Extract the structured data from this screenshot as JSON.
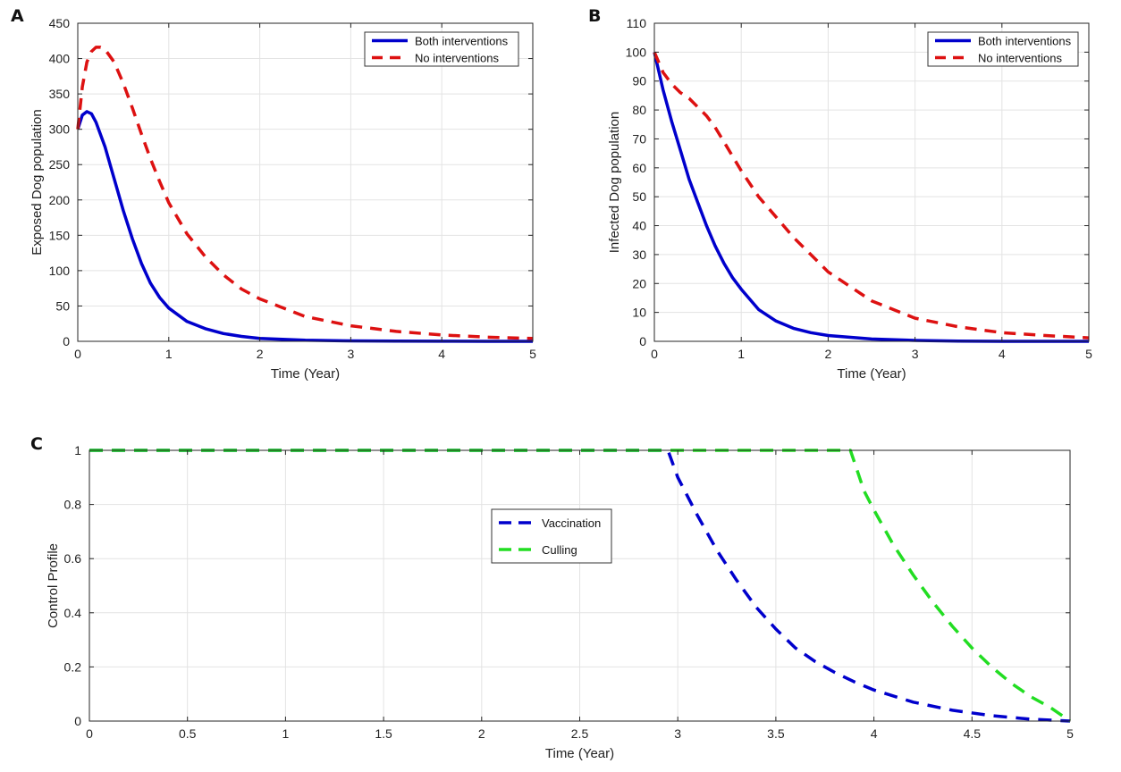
{
  "chart_data": [
    {
      "id": "A",
      "type": "line",
      "panel_label": "A",
      "xlabel": "Time (Year)",
      "ylabel": "Exposed Dog population",
      "xlim": [
        0,
        5
      ],
      "ylim": [
        0,
        450
      ],
      "xticks": [
        0,
        1,
        2,
        3,
        4,
        5
      ],
      "yticks": [
        0,
        50,
        100,
        150,
        200,
        250,
        300,
        350,
        400,
        450
      ],
      "grid": true,
      "legend_position": "top-right",
      "series": [
        {
          "name": "Both interventions",
          "color": "#0000CC",
          "style": "solid",
          "x": [
            0,
            0.05,
            0.1,
            0.15,
            0.2,
            0.3,
            0.4,
            0.5,
            0.6,
            0.7,
            0.8,
            0.9,
            1.0,
            1.2,
            1.4,
            1.6,
            1.8,
            2.0,
            2.5,
            3.0,
            3.5,
            4.0,
            4.5,
            5.0
          ],
          "y": [
            300,
            320,
            325,
            322,
            310,
            275,
            230,
            185,
            145,
            110,
            82,
            62,
            47,
            28,
            18,
            11,
            7,
            4,
            1.5,
            0.6,
            0.2,
            0.1,
            0,
            0
          ]
        },
        {
          "name": "No interventions",
          "color": "#DD1111",
          "style": "dashed",
          "x": [
            0,
            0.05,
            0.1,
            0.15,
            0.2,
            0.25,
            0.3,
            0.4,
            0.5,
            0.6,
            0.7,
            0.8,
            0.9,
            1.0,
            1.2,
            1.4,
            1.6,
            1.8,
            2.0,
            2.5,
            3.0,
            3.5,
            4.0,
            4.5,
            5.0
          ],
          "y": [
            300,
            360,
            395,
            410,
            416,
            416,
            413,
            395,
            365,
            330,
            293,
            258,
            226,
            196,
            152,
            120,
            94,
            74,
            60,
            35,
            22,
            14,
            9,
            6,
            4
          ]
        }
      ]
    },
    {
      "id": "B",
      "type": "line",
      "panel_label": "B",
      "xlabel": "Time (Year)",
      "ylabel": "Infected Dog population",
      "xlim": [
        0,
        5
      ],
      "ylim": [
        0,
        110
      ],
      "xticks": [
        0,
        1,
        2,
        3,
        4,
        5
      ],
      "yticks": [
        0,
        10,
        20,
        30,
        40,
        50,
        60,
        70,
        80,
        90,
        100,
        110
      ],
      "grid": true,
      "legend_position": "top-right",
      "series": [
        {
          "name": "Both interventions",
          "color": "#0000CC",
          "style": "solid",
          "x": [
            0,
            0.1,
            0.2,
            0.3,
            0.4,
            0.5,
            0.6,
            0.7,
            0.8,
            0.9,
            1.0,
            1.2,
            1.4,
            1.6,
            1.8,
            2.0,
            2.5,
            3.0,
            3.5,
            4.0,
            4.5,
            5.0
          ],
          "y": [
            100,
            87,
            76,
            66,
            56,
            48,
            40,
            33,
            27,
            22,
            18,
            11,
            7,
            4.5,
            3,
            2,
            0.8,
            0.3,
            0.1,
            0,
            0,
            0
          ]
        },
        {
          "name": "No interventions",
          "color": "#DD1111",
          "style": "dashed",
          "x": [
            0,
            0.1,
            0.2,
            0.3,
            0.4,
            0.5,
            0.6,
            0.7,
            0.8,
            0.9,
            1.0,
            1.2,
            1.4,
            1.6,
            1.8,
            2.0,
            2.5,
            3.0,
            3.5,
            4.0,
            4.5,
            5.0
          ],
          "y": [
            100,
            93,
            89,
            86,
            84,
            81,
            78,
            74,
            69,
            64,
            59,
            50,
            43,
            36,
            30,
            24,
            14,
            8,
            5,
            3,
            2,
            1.2
          ]
        }
      ]
    },
    {
      "id": "C",
      "type": "line",
      "panel_label": "C",
      "xlabel": "Time (Year)",
      "ylabel": "Control Profile",
      "xlim": [
        0,
        5
      ],
      "ylim": [
        0,
        1
      ],
      "xticks": [
        0,
        0.5,
        1,
        1.5,
        2,
        2.5,
        3,
        3.5,
        4,
        4.5,
        5
      ],
      "yticks": [
        0,
        0.2,
        0.4,
        0.6,
        0.8,
        1
      ],
      "grid": true,
      "legend_position": "center",
      "series": [
        {
          "name": "Vaccination",
          "color": "#0000CC",
          "style": "dashed",
          "x": [
            0,
            2.95,
            3.0,
            3.1,
            3.2,
            3.3,
            3.4,
            3.5,
            3.6,
            3.7,
            3.8,
            3.9,
            4.0,
            4.2,
            4.4,
            4.6,
            4.8,
            5.0
          ],
          "y": [
            1,
            1,
            0.9,
            0.76,
            0.63,
            0.52,
            0.42,
            0.34,
            0.27,
            0.22,
            0.18,
            0.145,
            0.115,
            0.07,
            0.04,
            0.02,
            0.007,
            0
          ]
        },
        {
          "name": "Culling",
          "color": "#22DD22",
          "style": "dashed",
          "x": [
            0,
            3.88,
            3.95,
            4.0,
            4.1,
            4.2,
            4.3,
            4.4,
            4.5,
            4.6,
            4.7,
            4.8,
            4.9,
            5.0
          ],
          "y": [
            1,
            1,
            0.85,
            0.78,
            0.65,
            0.54,
            0.44,
            0.35,
            0.27,
            0.2,
            0.14,
            0.09,
            0.05,
            0
          ]
        }
      ]
    }
  ]
}
